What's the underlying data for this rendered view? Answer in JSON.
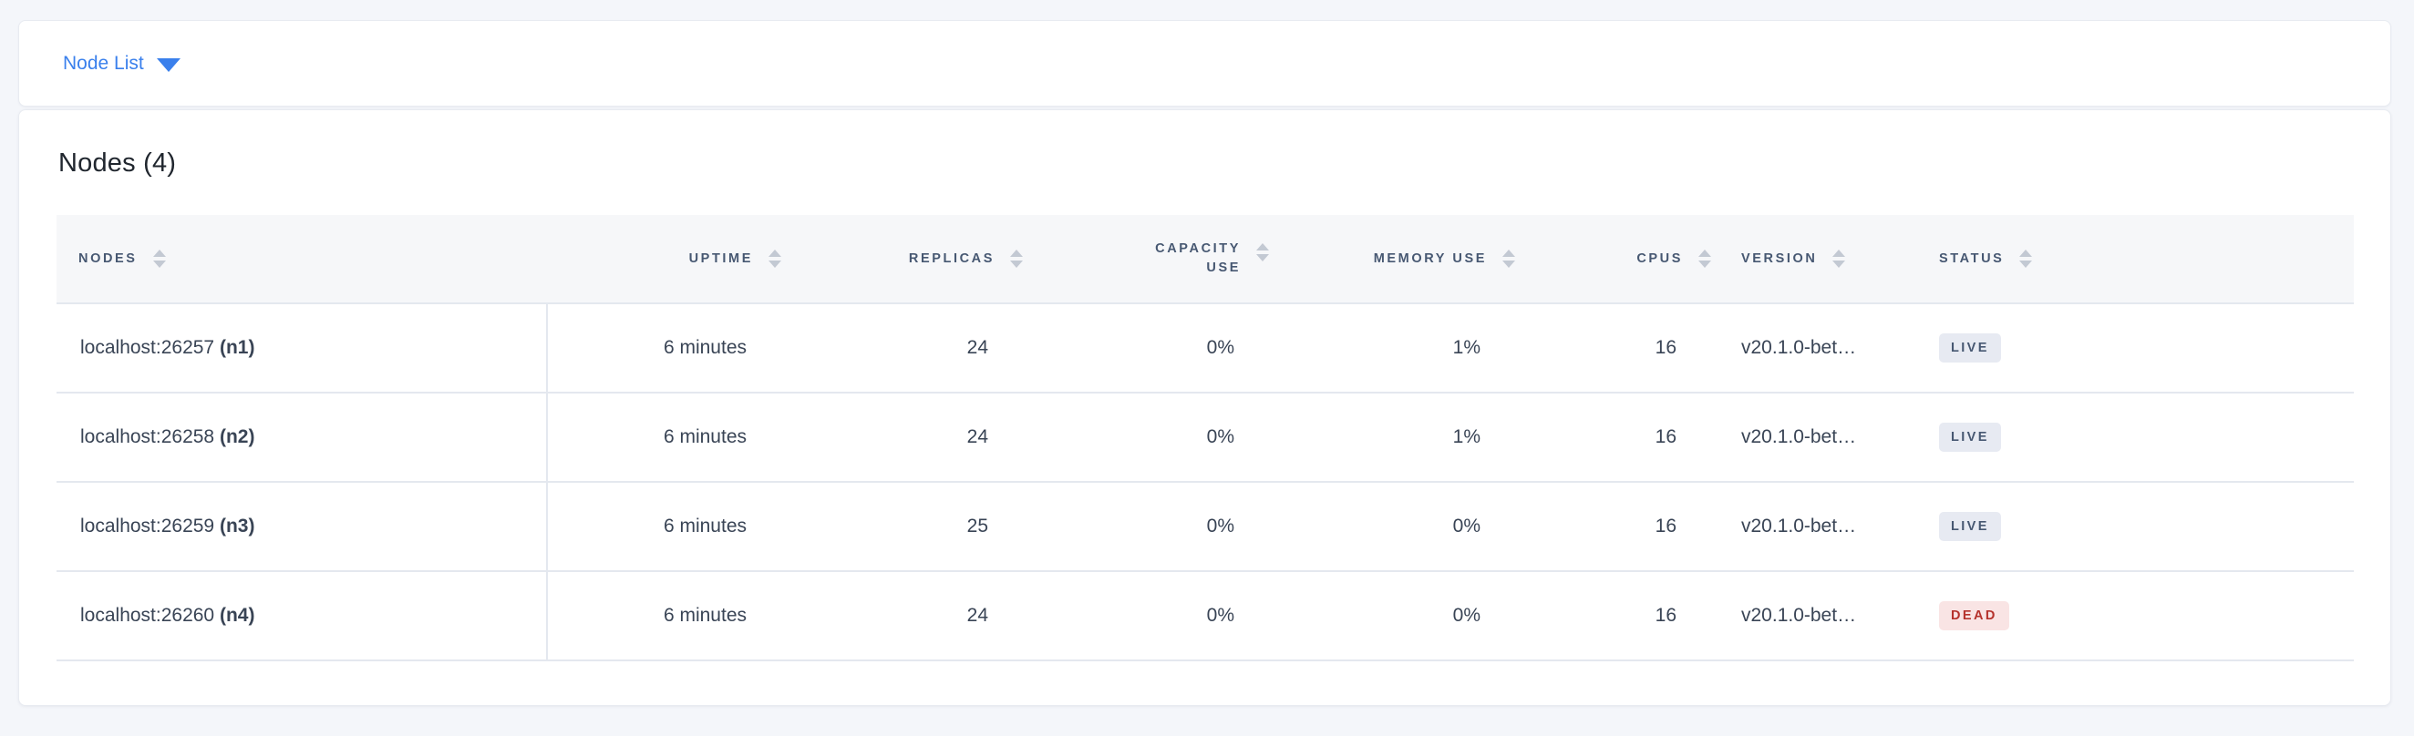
{
  "page": {
    "background": "#f4f6fa",
    "accent_blue": "#3a80ec"
  },
  "topbar": {
    "dropdown_label": "Node List",
    "caret_icon": "caret-down-icon"
  },
  "main": {
    "title": "Nodes (4)",
    "table": {
      "columns": [
        {
          "key": "nodes",
          "label": "NODES",
          "align": "left",
          "sortable": true
        },
        {
          "key": "uptime",
          "label": "UPTIME",
          "align": "right",
          "sortable": true
        },
        {
          "key": "replicas",
          "label": "REPLICAS",
          "align": "right",
          "sortable": true
        },
        {
          "key": "capacity_use",
          "label": "CAPACITY USE",
          "label_lines": [
            "CAPACITY",
            "USE"
          ],
          "align": "right",
          "sortable": true
        },
        {
          "key": "memory_use",
          "label": "MEMORY USE",
          "align": "right",
          "sortable": true
        },
        {
          "key": "cpus",
          "label": "CPUS",
          "align": "right",
          "sortable": true
        },
        {
          "key": "version",
          "label": "VERSION",
          "align": "left",
          "sortable": true
        },
        {
          "key": "status",
          "label": "STATUS",
          "align": "left",
          "sortable": true
        }
      ],
      "sort_icon": "sort-arrows-icon",
      "rows": [
        {
          "address": "localhost:26257",
          "node_id": "(n1)",
          "uptime": "6 minutes",
          "replicas": "24",
          "capacity_use": "0%",
          "memory_use": "1%",
          "cpus": "16",
          "version": "v20.1.0-bet…",
          "status": "LIVE"
        },
        {
          "address": "localhost:26258",
          "node_id": "(n2)",
          "uptime": "6 minutes",
          "replicas": "24",
          "capacity_use": "0%",
          "memory_use": "1%",
          "cpus": "16",
          "version": "v20.1.0-bet…",
          "status": "LIVE"
        },
        {
          "address": "localhost:26259",
          "node_id": "(n3)",
          "uptime": "6 minutes",
          "replicas": "25",
          "capacity_use": "0%",
          "memory_use": "0%",
          "cpus": "16",
          "version": "v20.1.0-bet…",
          "status": "LIVE"
        },
        {
          "address": "localhost:26260",
          "node_id": "(n4)",
          "uptime": "6 minutes",
          "replicas": "24",
          "capacity_use": "0%",
          "memory_use": "0%",
          "cpus": "16",
          "version": "v20.1.0-bet…",
          "status": "DEAD"
        }
      ],
      "status_colors": {
        "LIVE": {
          "bg": "#e7eaf2",
          "text": "#475872"
        },
        "DEAD": {
          "bg": "#f9e4e4",
          "text": "#b5322c"
        }
      }
    }
  }
}
